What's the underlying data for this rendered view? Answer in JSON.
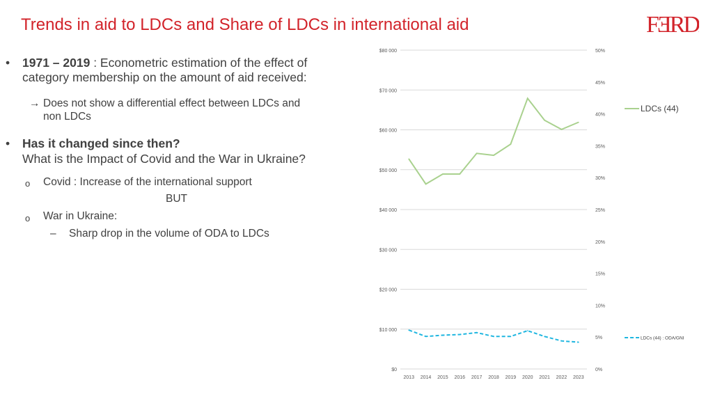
{
  "slide": {
    "title": "Trends in aid to LDCs and Share of LDCs in international aid",
    "logo_text": "FERDI",
    "brand_color": "#d2232a"
  },
  "content": {
    "bullet1_years": "1971 – 2019",
    "bullet1_text_a": " : Econometric estimation of the effect of",
    "bullet1_text_b": "category membership on the amount of aid received:",
    "arrow_glyph": "→",
    "arrow_text_a": "Does not show a differential effect between LDCs and",
    "arrow_text_b": "non LDCs",
    "bullet2_heading": "Has it changed since then?",
    "bullet2_text": "What is the Impact of Covid and the War in Ukraine?",
    "sub1_marker": "o",
    "sub1_text": "Covid : Increase of the international support",
    "but_text": "BUT",
    "sub2_marker": "o",
    "sub2_text": "War in Ukraine:",
    "dash_marker": "–",
    "dash_text": "Sharp drop in the volume of ODA to LDCs",
    "bullet_glyph": "•"
  },
  "chart_data": {
    "type": "line",
    "x": [
      "2013",
      "2014",
      "2015",
      "2016",
      "2017",
      "2018",
      "2019",
      "2020",
      "2021",
      "2022",
      "2023"
    ],
    "left_axis": {
      "ylim": [
        0,
        80000
      ],
      "ticks": [
        "$0",
        "$10 000",
        "$20 000",
        "$30 000",
        "$40 000",
        "$50 000",
        "$60 000",
        "$70 000",
        "$80 000"
      ]
    },
    "right_axis": {
      "ylim": [
        0,
        50
      ],
      "ticks": [
        "0%",
        "5%",
        "10%",
        "15%",
        "20%",
        "25%",
        "30%",
        "35%",
        "40%",
        "45%",
        "50%"
      ]
    },
    "grid": true,
    "series": [
      {
        "name": "LDCs (44)",
        "axis": "left",
        "color": "#a9d18e",
        "style": "solid",
        "values": [
          52700,
          46400,
          48900,
          48900,
          54100,
          53600,
          56400,
          67900,
          62400,
          60100,
          61900
        ]
      },
      {
        "name": "LDCs (44) : ODA/GNI",
        "axis": "right",
        "color": "#1fb6e0",
        "style": "dashed",
        "values": [
          6.1,
          5.1,
          5.3,
          5.4,
          5.7,
          5.1,
          5.1,
          6.0,
          5.1,
          4.4,
          4.2
        ]
      }
    ],
    "legend_placement": "right"
  }
}
